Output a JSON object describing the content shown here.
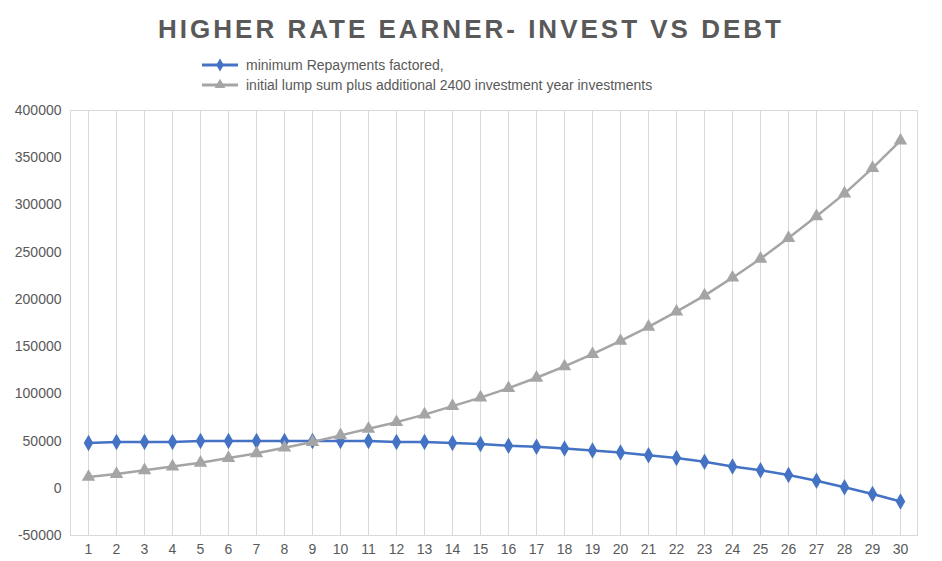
{
  "chart_data": {
    "type": "line",
    "title": "HIGHER RATE EARNER- INVEST VS DEBT",
    "categories": [
      "1",
      "2",
      "3",
      "4",
      "5",
      "6",
      "7",
      "8",
      "9",
      "10",
      "11",
      "12",
      "13",
      "14",
      "15",
      "16",
      "17",
      "18",
      "19",
      "20",
      "21",
      "22",
      "23",
      "24",
      "25",
      "26",
      "27",
      "28",
      "29",
      "30"
    ],
    "series": [
      {
        "name": "minimum Repayments factored,",
        "color": "#4472c4",
        "marker": "diamond",
        "values": [
          48000,
          49000,
          49000,
          49000,
          50000,
          50000,
          50000,
          50000,
          50000,
          50000,
          50000,
          49000,
          49000,
          48000,
          47000,
          45000,
          44000,
          42000,
          40000,
          38000,
          35000,
          32000,
          28000,
          23000,
          19000,
          14000,
          8000,
          1000,
          -6000,
          -14000
        ]
      },
      {
        "name": "initial lump sum plus additional 2400 investment year investments",
        "color": "#a5a5a5",
        "marker": "triangle",
        "values": [
          12000,
          15000,
          19000,
          23000,
          27000,
          32000,
          37000,
          43000,
          49000,
          56000,
          63000,
          70000,
          78000,
          87000,
          96000,
          106000,
          117000,
          129000,
          142000,
          156000,
          171000,
          187000,
          204000,
          223000,
          243000,
          265000,
          288000,
          312000,
          339000,
          368000
        ]
      }
    ],
    "ylim": [
      -50000,
      400000
    ],
    "yticks": [
      -50000,
      0,
      50000,
      100000,
      150000,
      200000,
      250000,
      300000,
      350000,
      400000
    ],
    "grid": true,
    "legend": "top"
  }
}
